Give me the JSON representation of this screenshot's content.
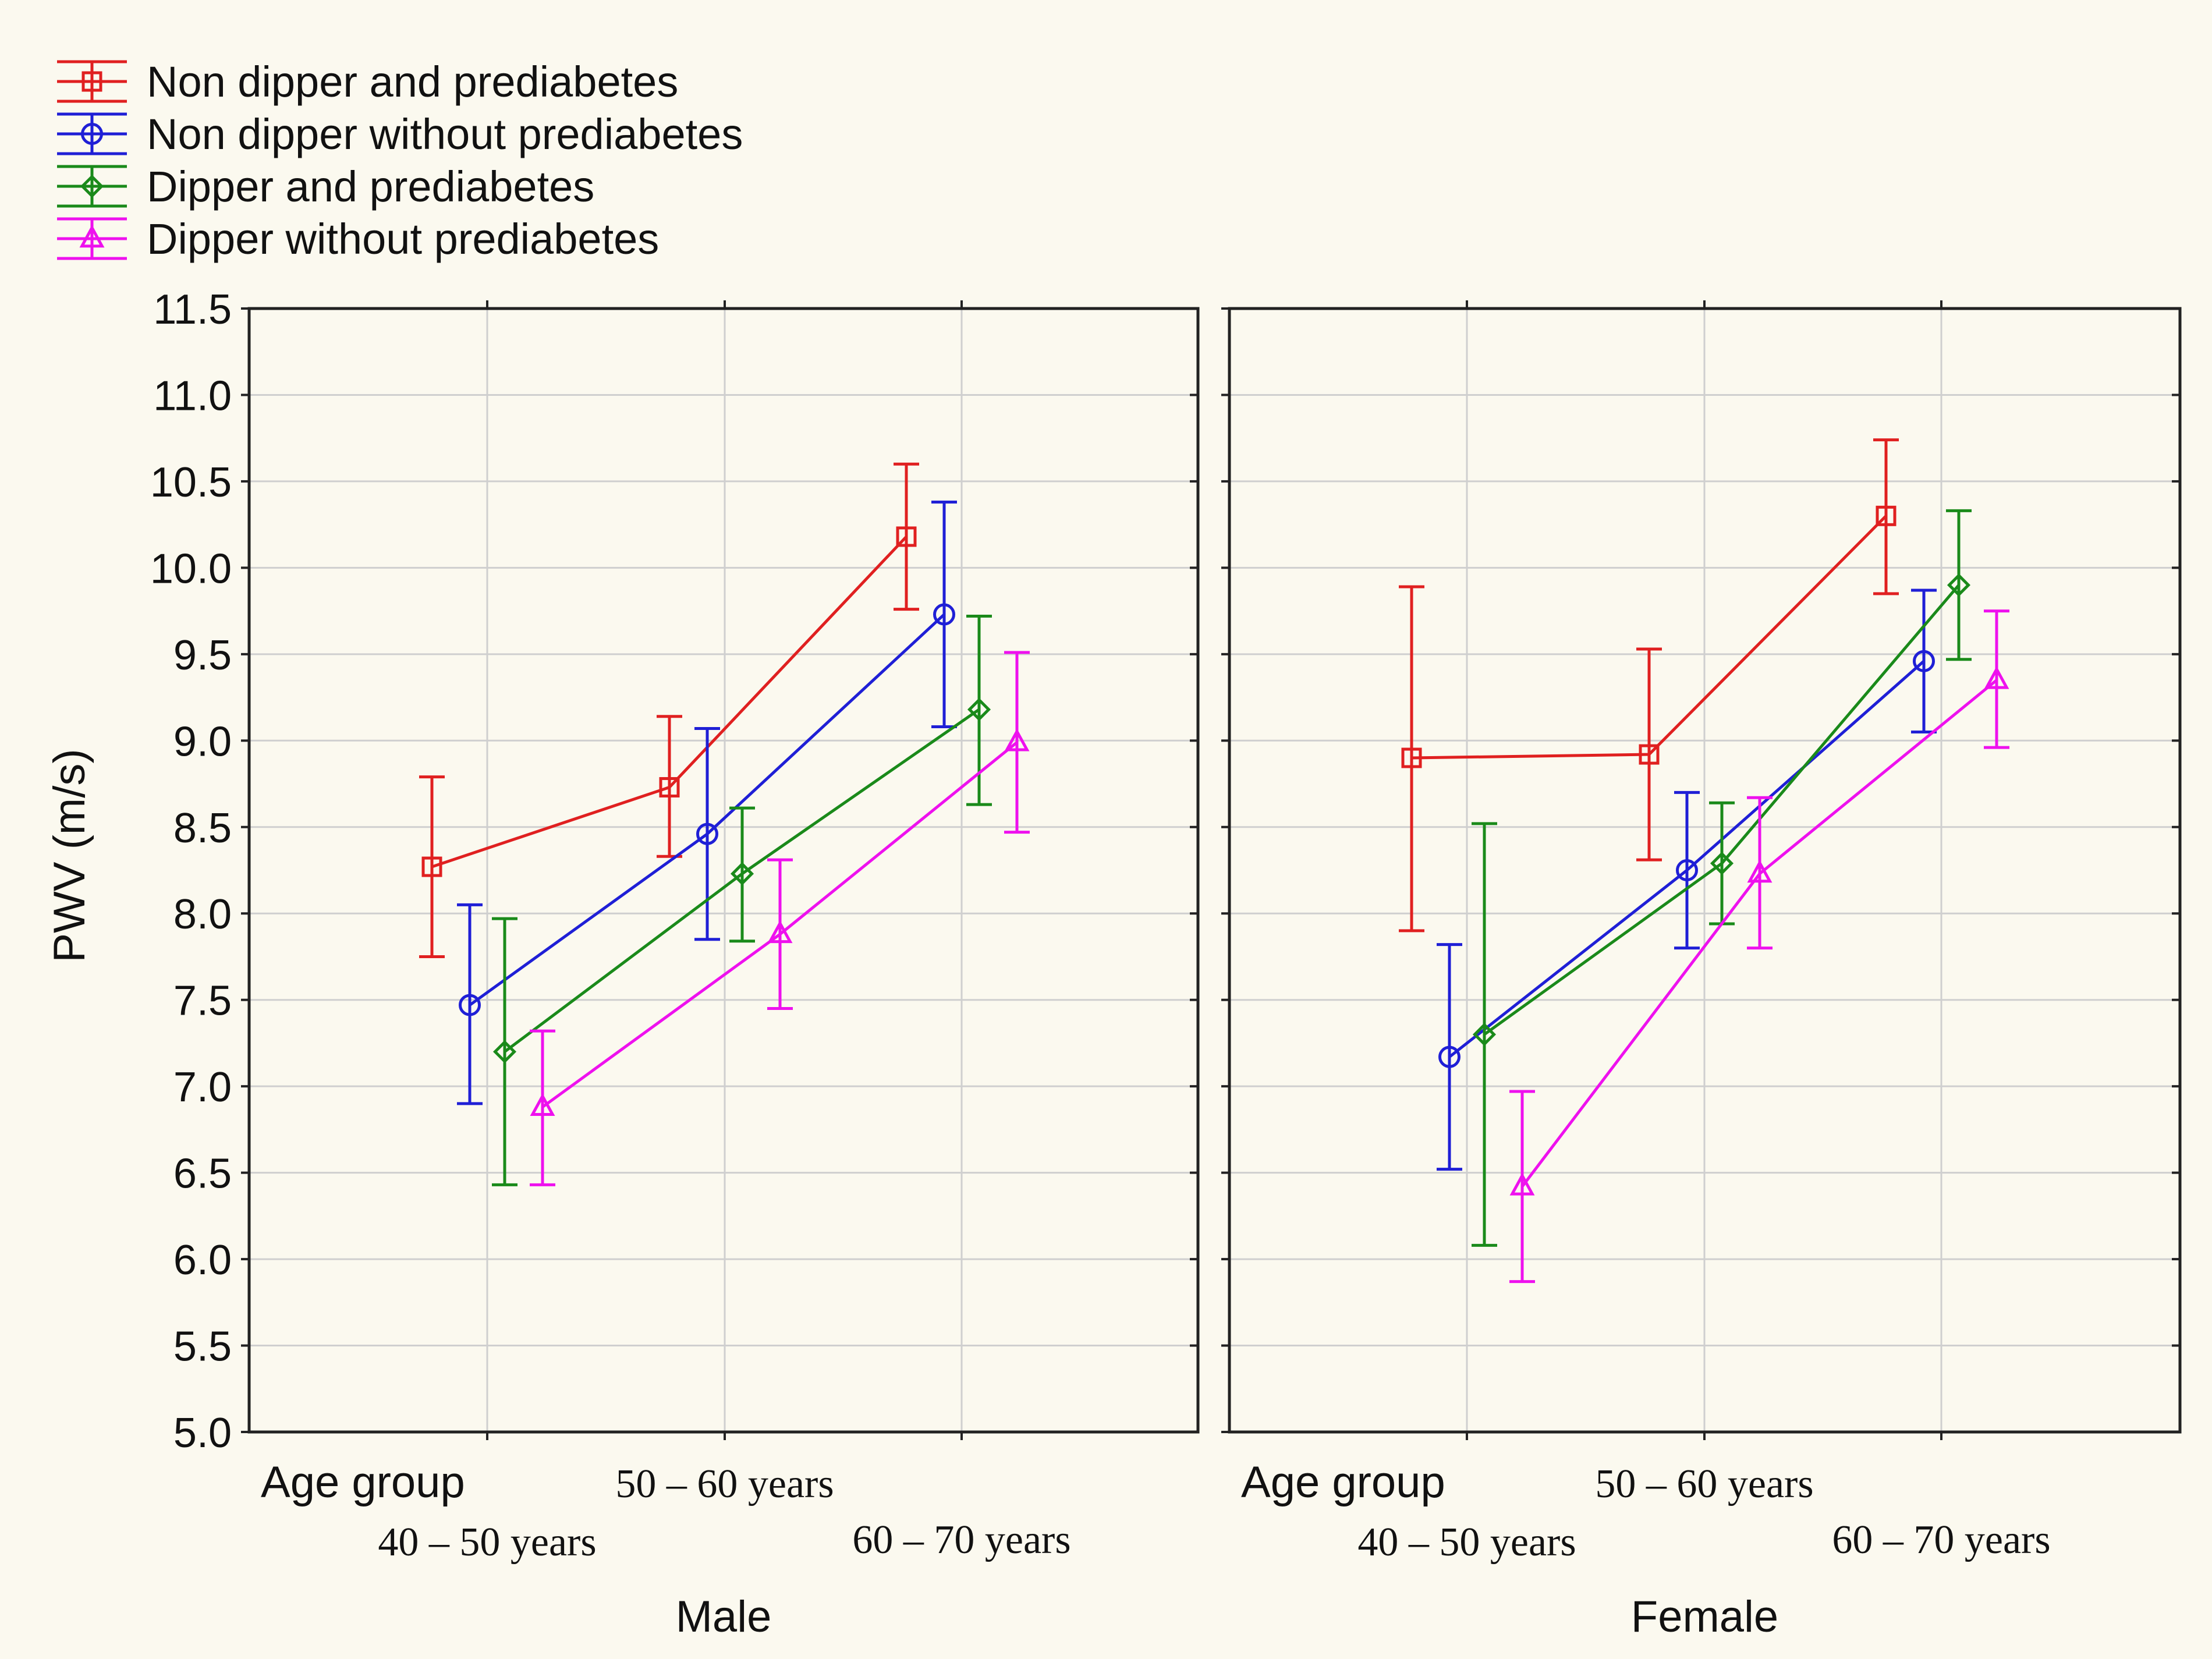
{
  "chart_data": {
    "type": "line",
    "y_label": "PWV (m/s)",
    "ylim": [
      5.0,
      11.5
    ],
    "y_ticks": [
      "5.0",
      "5.5",
      "6.0",
      "6.5",
      "7.0",
      "7.5",
      "8.0",
      "8.5",
      "9.0",
      "9.5",
      "10.0",
      "10.5",
      "11.0",
      "11.5"
    ],
    "y_tick_values": [
      5.0,
      5.5,
      6.0,
      6.5,
      7.0,
      7.5,
      8.0,
      8.5,
      9.0,
      9.5,
      10.0,
      10.5,
      11.0,
      11.5
    ],
    "grid": true,
    "legend_position": "top-left",
    "categories": [
      "40 – 50 years",
      "50 – 60 years",
      "60 – 70 years"
    ],
    "age_group_label": "Age group",
    "series_styles": [
      {
        "name": "Non dipper and prediabetes",
        "color": "#e02020",
        "marker": "square"
      },
      {
        "name": "Non dipper without prediabetes",
        "color": "#1f1fd6",
        "marker": "circle"
      },
      {
        "name": "Dipper and prediabetes",
        "color": "#1a8a1a",
        "marker": "diamond"
      },
      {
        "name": "Dipper without prediabetes",
        "color": "#ee11ee",
        "marker": "triangle"
      }
    ],
    "panels": [
      {
        "title": "Male",
        "series": [
          {
            "name": "Non dipper and prediabetes",
            "values": [
              8.27,
              8.73,
              10.18
            ],
            "lower": [
              7.75,
              8.33,
              9.76
            ],
            "upper": [
              8.79,
              9.14,
              10.6
            ]
          },
          {
            "name": "Non dipper without prediabetes",
            "values": [
              7.47,
              8.46,
              9.73
            ],
            "lower": [
              6.9,
              7.85,
              9.08
            ],
            "upper": [
              8.05,
              9.07,
              10.38
            ]
          },
          {
            "name": "Dipper and prediabetes",
            "values": [
              7.2,
              8.23,
              9.18
            ],
            "lower": [
              6.43,
              7.84,
              8.63
            ],
            "upper": [
              7.97,
              8.61,
              9.72
            ]
          },
          {
            "name": "Dipper without prediabetes",
            "values": [
              6.88,
              7.88,
              8.99
            ],
            "lower": [
              6.43,
              7.45,
              8.47
            ],
            "upper": [
              7.32,
              8.31,
              9.51
            ]
          }
        ]
      },
      {
        "title": "Female",
        "series": [
          {
            "name": "Non dipper and prediabetes",
            "values": [
              8.9,
              8.92,
              10.3
            ],
            "lower": [
              7.9,
              8.31,
              9.85
            ],
            "upper": [
              9.89,
              9.53,
              10.74
            ]
          },
          {
            "name": "Non dipper without prediabetes",
            "values": [
              7.17,
              8.25,
              9.46
            ],
            "lower": [
              6.52,
              7.8,
              9.05
            ],
            "upper": [
              7.82,
              8.7,
              9.87
            ]
          },
          {
            "name": "Dipper and prediabetes",
            "values": [
              7.3,
              8.29,
              9.9
            ],
            "lower": [
              6.08,
              7.94,
              9.47
            ],
            "upper": [
              8.52,
              8.64,
              10.33
            ]
          },
          {
            "name": "Dipper without prediabetes",
            "values": [
              6.42,
              8.23,
              9.35
            ],
            "lower": [
              5.87,
              7.8,
              8.96
            ],
            "upper": [
              6.97,
              8.67,
              9.75
            ]
          }
        ]
      }
    ]
  }
}
